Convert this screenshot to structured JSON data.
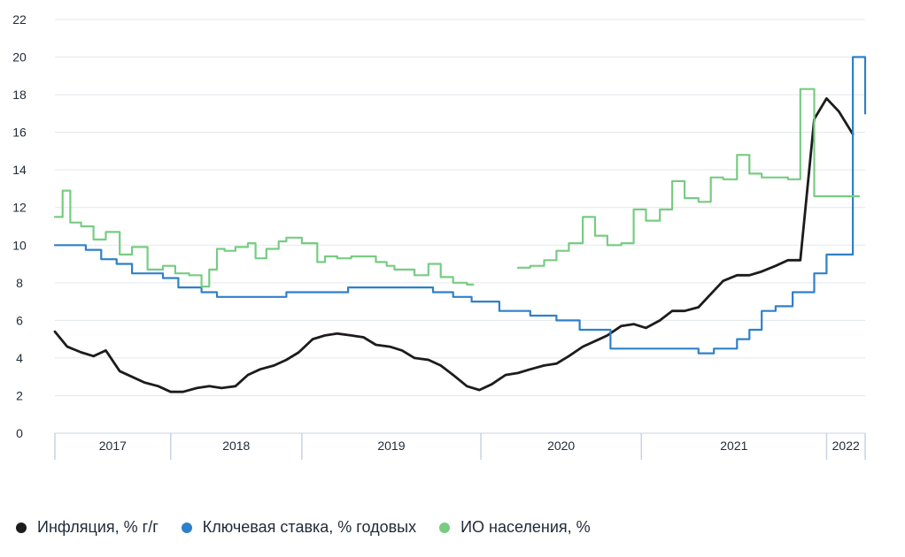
{
  "chart_data": {
    "type": "line",
    "y_ticks": [
      "0",
      "2",
      "4",
      "6",
      "8",
      "10",
      "12",
      "14",
      "16",
      "18",
      "20",
      "22"
    ],
    "ylim": [
      0,
      22
    ],
    "xlim": [
      2017.0,
      2022.25
    ],
    "grid": true,
    "legend_position": "bottom-left",
    "years": [
      {
        "label": "2017",
        "start": 2017.0,
        "end": 2017.75
      },
      {
        "label": "2018",
        "start": 2017.75,
        "end": 2018.6
      },
      {
        "label": "2019",
        "start": 2018.6,
        "end": 2019.76
      },
      {
        "label": "2020",
        "start": 2019.76,
        "end": 2020.8
      },
      {
        "label": "2021",
        "start": 2020.8,
        "end": 2022.0
      },
      {
        "label": "2022",
        "start": 2022.0,
        "end": 2022.25
      }
    ],
    "series": [
      {
        "name": "Инфляция, % г/г",
        "color": "#1c1c1c",
        "step": false,
        "x": [
          2017.0,
          2017.08,
          2017.17,
          2017.25,
          2017.33,
          2017.42,
          2017.5,
          2017.58,
          2017.67,
          2017.75,
          2017.83,
          2017.92,
          2018.0,
          2018.08,
          2018.17,
          2018.25,
          2018.33,
          2018.42,
          2018.5,
          2018.58,
          2018.67,
          2018.75,
          2018.83,
          2018.92,
          2019.0,
          2019.08,
          2019.17,
          2019.25,
          2019.33,
          2019.42,
          2019.5,
          2019.58,
          2019.67,
          2019.75,
          2019.83,
          2019.92,
          2020.0,
          2020.08,
          2020.17,
          2020.25,
          2020.33,
          2020.42,
          2020.5,
          2020.58,
          2020.67,
          2020.75,
          2020.83,
          2020.92,
          2021.0,
          2021.08,
          2021.17,
          2021.25,
          2021.33,
          2021.42,
          2021.5,
          2021.58,
          2021.67,
          2021.75,
          2021.83,
          2021.92,
          2022.0,
          2022.08,
          2022.17
        ],
        "y": [
          5.4,
          4.6,
          4.3,
          4.1,
          4.4,
          3.3,
          3.0,
          2.7,
          2.5,
          2.2,
          2.2,
          2.4,
          2.5,
          2.4,
          2.5,
          3.1,
          3.4,
          3.6,
          3.9,
          4.3,
          5.0,
          5.2,
          5.3,
          5.2,
          5.1,
          4.7,
          4.6,
          4.4,
          4.0,
          3.9,
          3.6,
          3.1,
          2.5,
          2.3,
          2.6,
          3.1,
          3.2,
          3.4,
          3.6,
          3.7,
          4.1,
          4.6,
          4.9,
          5.2,
          5.7,
          5.8,
          5.6,
          6.0,
          6.5,
          6.5,
          6.7,
          7.4,
          8.1,
          8.4,
          8.4,
          8.6,
          8.9,
          9.2,
          9.2,
          16.7,
          17.8,
          17.1,
          15.9
        ]
      },
      {
        "name": "Ключевая ставка, % годовых",
        "color": "#2f80c8",
        "step": true,
        "x": [
          2017.0,
          2017.2,
          2017.3,
          2017.4,
          2017.5,
          2017.7,
          2017.8,
          2017.95,
          2018.05,
          2018.2,
          2018.5,
          2018.9,
          2019.3,
          2019.45,
          2019.58,
          2019.7,
          2019.88,
          2020.08,
          2020.25,
          2020.4,
          2020.6,
          2021.17,
          2021.27,
          2021.42,
          2021.5,
          2021.58,
          2021.67,
          2021.78,
          2021.92,
          2022.0,
          2022.17,
          2022.25
        ],
        "y": [
          10.0,
          9.75,
          9.25,
          9.0,
          8.5,
          8.25,
          7.75,
          7.5,
          7.25,
          7.25,
          7.5,
          7.75,
          7.75,
          7.5,
          7.25,
          7.0,
          6.5,
          6.25,
          6.0,
          5.5,
          4.5,
          4.25,
          4.5,
          5.0,
          5.5,
          6.5,
          6.75,
          7.5,
          8.5,
          9.5,
          20.0,
          17.0
        ]
      },
      {
        "name": "ИО населения, %",
        "color": "#77cc82",
        "step": true,
        "x": [
          2017.0,
          2017.05,
          2017.1,
          2017.17,
          2017.25,
          2017.33,
          2017.42,
          2017.5,
          2017.6,
          2017.7,
          2017.78,
          2017.87,
          2017.95,
          2018.0,
          2018.05,
          2018.1,
          2018.17,
          2018.25,
          2018.3,
          2018.37,
          2018.45,
          2018.5,
          2018.6,
          2018.7,
          2018.75,
          2018.83,
          2018.92,
          2019.0,
          2019.08,
          2019.15,
          2019.2,
          2019.33,
          2019.42,
          2019.5,
          2019.58,
          2019.67,
          2019.75,
          2019.83,
          2020.0,
          2020.08,
          2020.17,
          2020.25,
          2020.33,
          2020.42,
          2020.5,
          2020.58,
          2020.67,
          2020.75,
          2020.83,
          2020.92,
          2021.0,
          2021.08,
          2021.17,
          2021.25,
          2021.33,
          2021.42,
          2021.5,
          2021.58,
          2021.67,
          2021.75,
          2021.83,
          2021.92,
          2022.0,
          2022.08,
          2022.17
        ],
        "y": [
          11.5,
          12.9,
          11.2,
          11.0,
          10.3,
          10.7,
          9.5,
          9.9,
          8.7,
          8.9,
          8.5,
          8.4,
          7.8,
          8.7,
          9.8,
          9.7,
          9.9,
          10.1,
          9.3,
          9.8,
          10.2,
          10.4,
          10.1,
          9.1,
          9.4,
          9.3,
          9.4,
          9.4,
          9.1,
          8.9,
          8.7,
          8.4,
          9.0,
          8.3,
          8.0,
          7.9,
          null,
          null,
          8.8,
          8.9,
          9.2,
          9.7,
          10.1,
          11.5,
          10.5,
          10.0,
          10.1,
          11.9,
          11.3,
          11.9,
          13.4,
          12.5,
          12.3,
          13.6,
          13.5,
          14.8,
          13.8,
          13.6,
          13.6,
          13.5,
          18.3,
          12.6,
          12.6,
          12.6,
          12.6
        ]
      }
    ]
  }
}
